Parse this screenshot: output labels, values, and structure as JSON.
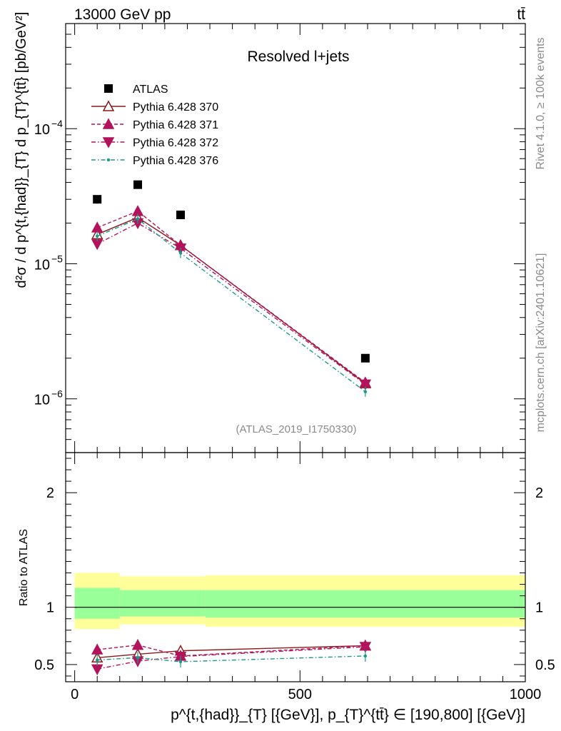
{
  "header": {
    "energy_label": "13000 GeV pp",
    "process_label": "tt̄"
  },
  "side_text": {
    "rivet": "Rivet 4.1.0, ≥ 100k events",
    "source": "mcplots.cern.ch [arXiv:2401.10621]"
  },
  "chart_data": [
    {
      "type": "scatter",
      "panel": "main",
      "title": "Resolved l+jets",
      "analysis_tag": "(ATLAS_2019_I1750330)",
      "ylabel": "d²σ / d p^{t,{had}}_{T} d p_{T}^{tt̄} [pb/GeV²]",
      "yscale": "log",
      "ylim": [
        4e-07,
        0.0006
      ],
      "xlim": [
        -20,
        1000
      ],
      "y_tick_labels": [
        "10^-6",
        "10^-5",
        "10^-4"
      ],
      "y_tick_mantissa": "10",
      "y_tick_exponents": [
        "−6",
        "−5",
        "−4"
      ],
      "y_tick_values": [
        1e-06,
        1e-05,
        0.0001
      ],
      "series": [
        {
          "name": "ATLAS",
          "marker": "square",
          "color": "#000000",
          "x": [
            50,
            140,
            235,
            645
          ],
          "y": [
            3e-05,
            3.85e-05,
            2.3e-05,
            2e-06
          ]
        },
        {
          "name": "Pythia 6.428 370",
          "marker": "triangle-up-open",
          "line": "solid",
          "color": "#8b1a1a",
          "x": [
            50,
            140,
            235,
            645
          ],
          "y": [
            1.65e-05,
            2.2e-05,
            1.37e-05,
            1.3e-06
          ]
        },
        {
          "name": "Pythia 6.428 371",
          "marker": "triangle-up",
          "line": "dashed",
          "color": "#b3135a",
          "x": [
            50,
            140,
            235,
            645
          ],
          "y": [
            1.85e-05,
            2.45e-05,
            1.37e-05,
            1.32e-06
          ]
        },
        {
          "name": "Pythia 6.428 372",
          "marker": "triangle-down",
          "line": "dashdot",
          "color": "#b3135a",
          "x": [
            50,
            140,
            235,
            645
          ],
          "y": [
            1.4e-05,
            2e-05,
            1.3e-05,
            1.28e-06
          ]
        },
        {
          "name": "Pythia 6.428 376",
          "marker": "dot",
          "line": "dashdot",
          "color": "#1a9a8a",
          "x": [
            50,
            140,
            235,
            645
          ],
          "y": [
            1.6e-05,
            2.15e-05,
            1.2e-05,
            1.13e-06
          ]
        }
      ]
    },
    {
      "type": "line",
      "panel": "ratio",
      "ylabel": "Ratio to ATLAS",
      "ylim": [
        0.35,
        2.35
      ],
      "xlim": [
        -20,
        1000
      ],
      "xlabel": "p^{t,{had}}_{T} [{GeV}], p_{T}^{tt̄} ∈ [190,800] [{GeV}]",
      "x_tick_labels": [
        "0",
        "500",
        "1000"
      ],
      "y_tick_labels": [
        "0.5",
        "1",
        "2"
      ],
      "reference_line": 1,
      "bands": [
        {
          "name": "total uncertainty",
          "color": "#ffff99",
          "edges": [
            0,
            100,
            290,
            1000
          ],
          "low": [
            0.81,
            0.85,
            0.83
          ],
          "high": [
            1.3,
            1.27,
            1.28
          ]
        },
        {
          "name": "stat uncertainty",
          "color": "#99ff99",
          "edges": [
            0,
            100,
            290,
            1000
          ],
          "low": [
            0.9,
            0.92,
            0.91
          ],
          "high": [
            1.17,
            1.15,
            1.15
          ]
        }
      ],
      "series": [
        {
          "name": "Pythia 6.428 370",
          "x": [
            50,
            140,
            235,
            645
          ],
          "y": [
            0.56,
            0.59,
            0.62,
            0.665
          ],
          "color": "#8b1a1a"
        },
        {
          "name": "Pythia 6.428 371",
          "x": [
            50,
            140,
            235,
            645
          ],
          "y": [
            0.63,
            0.67,
            0.575,
            0.665
          ],
          "color": "#b3135a"
        },
        {
          "name": "Pythia 6.428 372",
          "x": [
            50,
            140,
            235,
            645
          ],
          "y": [
            0.46,
            0.53,
            0.57,
            0.655
          ],
          "color": "#b3135a"
        },
        {
          "name": "Pythia 6.428 376",
          "x": [
            50,
            140,
            235,
            645
          ],
          "y": [
            0.54,
            0.56,
            0.525,
            0.575
          ],
          "color": "#1a9a8a"
        }
      ]
    }
  ]
}
